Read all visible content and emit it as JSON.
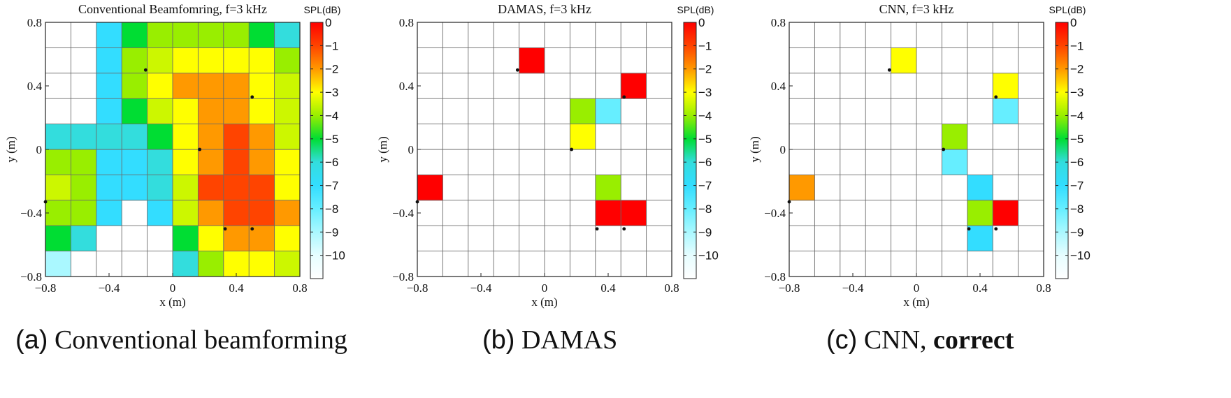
{
  "captions": [
    {
      "tag": "(a)",
      "text": "Conventional beamforming",
      "bold": ""
    },
    {
      "tag": "(b)",
      "text": "DAMAS",
      "bold": ""
    },
    {
      "tag": "(c)",
      "text": "CNN, ",
      "bold": "correct"
    }
  ],
  "chart_data": [
    {
      "type": "heatmap",
      "title": "Conventional Beamfomring, f=3 kHz",
      "xlabel": "x (m)",
      "ylabel": "y (m)",
      "xlim": [
        -0.8,
        0.8
      ],
      "ylim": [
        -0.8,
        0.8
      ],
      "xticks": [
        -0.8,
        -0.4,
        0,
        0.4,
        0.8
      ],
      "yticks": [
        -0.8,
        -0.4,
        0,
        0.4,
        0.8
      ],
      "grid": true,
      "colorbar": {
        "label": "SPL(dB)",
        "min": -11,
        "max": 0,
        "ticks": [
          0,
          -1,
          -2,
          -3,
          -4,
          -5,
          -6,
          -7,
          -8,
          -9,
          -10
        ]
      },
      "grid_size": 10,
      "values_dB_rows_top_to_bottom": [
        [
          null,
          null,
          -7,
          -5,
          -4,
          -4,
          -4,
          -4,
          -5,
          -6
        ],
        [
          null,
          null,
          -7,
          -4,
          -3.5,
          -3,
          -3,
          -3,
          -3,
          -4
        ],
        [
          null,
          null,
          -7,
          -4,
          -3,
          -2,
          -2,
          -2,
          -3,
          -3.5
        ],
        [
          null,
          null,
          -7,
          -5,
          -3.5,
          -3,
          -2,
          -2,
          -3,
          -3.5
        ],
        [
          -6,
          -6,
          -6,
          -6,
          -5,
          -3,
          -2,
          -1,
          -2,
          -3.5
        ],
        [
          -4,
          -4,
          -7,
          -7,
          -6,
          -3,
          -2,
          -1,
          -2,
          -3
        ],
        [
          -3.5,
          -4,
          -7,
          -7,
          -6,
          -3.5,
          -1,
          -1,
          -1,
          -3
        ],
        [
          -4,
          -4,
          -7,
          null,
          -7,
          -3.5,
          -2,
          -1,
          -1,
          -2
        ],
        [
          -5,
          -6,
          null,
          null,
          null,
          -5,
          -3,
          -2,
          -2,
          -3
        ],
        [
          -9,
          null,
          null,
          null,
          null,
          -6,
          -4,
          -3,
          -3,
          -3.5
        ]
      ],
      "source_markers": [
        [
          -0.8,
          -0.33
        ],
        [
          -0.17,
          0.5
        ],
        [
          0.17,
          0.0
        ],
        [
          0.5,
          0.33
        ],
        [
          0.33,
          -0.5
        ],
        [
          0.5,
          -0.5
        ]
      ]
    },
    {
      "type": "heatmap",
      "title": "DAMAS, f=3 kHz",
      "xlabel": "x (m)",
      "ylabel": "y (m)",
      "xlim": [
        -0.8,
        0.8
      ],
      "ylim": [
        -0.8,
        0.8
      ],
      "xticks": [
        -0.8,
        -0.4,
        0,
        0.4,
        0.8
      ],
      "yticks": [
        -0.8,
        -0.4,
        0,
        0.4,
        0.8
      ],
      "grid": true,
      "colorbar": {
        "label": "SPL(dB)",
        "min": -11,
        "max": 0,
        "ticks": [
          0,
          -1,
          -2,
          -3,
          -4,
          -5,
          -6,
          -7,
          -8,
          -9,
          -10
        ]
      },
      "grid_size": 10,
      "cells": [
        {
          "row": 1,
          "col": 4,
          "value": 0
        },
        {
          "row": 2,
          "col": 8,
          "value": 0
        },
        {
          "row": 3,
          "col": 6,
          "value": -4
        },
        {
          "row": 3,
          "col": 7,
          "value": -8
        },
        {
          "row": 4,
          "col": 6,
          "value": -3
        },
        {
          "row": 6,
          "col": 0,
          "value": 0
        },
        {
          "row": 6,
          "col": 7,
          "value": -4
        },
        {
          "row": 7,
          "col": 7,
          "value": 0
        },
        {
          "row": 7,
          "col": 8,
          "value": 0
        }
      ],
      "source_markers": [
        [
          -0.8,
          -0.33
        ],
        [
          -0.17,
          0.5
        ],
        [
          0.17,
          0.0
        ],
        [
          0.5,
          0.33
        ],
        [
          0.33,
          -0.5
        ],
        [
          0.5,
          -0.5
        ]
      ]
    },
    {
      "type": "heatmap",
      "title": "CNN, f=3 kHz",
      "xlabel": "x (m)",
      "ylabel": "y (m)",
      "xlim": [
        -0.8,
        0.8
      ],
      "ylim": [
        -0.8,
        0.8
      ],
      "xticks": [
        -0.8,
        -0.4,
        0,
        0.4,
        0.8
      ],
      "yticks": [
        -0.8,
        -0.4,
        0,
        0.4,
        0.8
      ],
      "grid": true,
      "colorbar": {
        "label": "SPL(dB)",
        "min": -11,
        "max": 0,
        "ticks": [
          0,
          -1,
          -2,
          -3,
          -4,
          -5,
          -6,
          -7,
          -8,
          -9,
          -10
        ]
      },
      "grid_size": 10,
      "cells": [
        {
          "row": 1,
          "col": 4,
          "value": -3
        },
        {
          "row": 2,
          "col": 8,
          "value": -3
        },
        {
          "row": 3,
          "col": 8,
          "value": -8
        },
        {
          "row": 4,
          "col": 6,
          "value": -4
        },
        {
          "row": 5,
          "col": 6,
          "value": -8
        },
        {
          "row": 6,
          "col": 0,
          "value": -2
        },
        {
          "row": 6,
          "col": 7,
          "value": -7
        },
        {
          "row": 7,
          "col": 7,
          "value": -4
        },
        {
          "row": 7,
          "col": 8,
          "value": 0
        },
        {
          "row": 8,
          "col": 7,
          "value": -7
        }
      ],
      "source_markers": [
        [
          -0.8,
          -0.33
        ],
        [
          -0.17,
          0.5
        ],
        [
          0.17,
          0.0
        ],
        [
          0.5,
          0.33
        ],
        [
          0.33,
          -0.5
        ],
        [
          0.5,
          -0.5
        ]
      ]
    }
  ]
}
